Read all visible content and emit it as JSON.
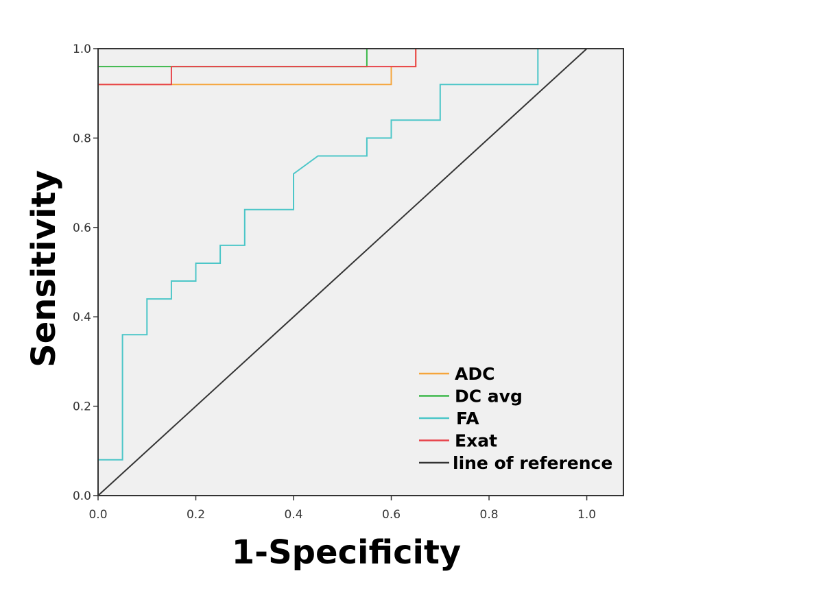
{
  "chart_data": {
    "type": "line",
    "title": "",
    "xlabel": "1-Specificity",
    "ylabel": "Sensitivity",
    "xlim": [
      0,
      1.075
    ],
    "ylim": [
      0,
      1.0
    ],
    "xticks": [
      "0.0",
      "0.2",
      "0.4",
      "0.6",
      "0.8",
      "1.0"
    ],
    "yticks": [
      "0.0",
      "0.2",
      "0.4",
      "0.6",
      "0.8",
      "1.0"
    ],
    "grid": false,
    "legend_position": "bottom-right",
    "series": [
      {
        "name": "ADC",
        "color": "#f5a53c",
        "points": [
          [
            0,
            0
          ],
          [
            0,
            0.92
          ],
          [
            0.15,
            0.92
          ],
          [
            0.6,
            0.92
          ],
          [
            0.6,
            0.96
          ],
          [
            0.65,
            0.96
          ],
          [
            0.65,
            1.0
          ],
          [
            1.0,
            1.0
          ]
        ]
      },
      {
        "name": "DC avg",
        "color": "#3cb84a",
        "points": [
          [
            0,
            0
          ],
          [
            0,
            0.96
          ],
          [
            0.55,
            0.96
          ],
          [
            0.55,
            1.0
          ],
          [
            1.0,
            1.0
          ]
        ]
      },
      {
        "name": "FA",
        "color": "#4cc6c8",
        "points": [
          [
            0,
            0
          ],
          [
            0,
            0.08
          ],
          [
            0.05,
            0.08
          ],
          [
            0.05,
            0.36
          ],
          [
            0.1,
            0.36
          ],
          [
            0.1,
            0.44
          ],
          [
            0.15,
            0.44
          ],
          [
            0.15,
            0.48
          ],
          [
            0.2,
            0.48
          ],
          [
            0.2,
            0.52
          ],
          [
            0.25,
            0.52
          ],
          [
            0.25,
            0.56
          ],
          [
            0.3,
            0.56
          ],
          [
            0.3,
            0.64
          ],
          [
            0.4,
            0.64
          ],
          [
            0.4,
            0.72
          ],
          [
            0.45,
            0.76
          ],
          [
            0.55,
            0.76
          ],
          [
            0.55,
            0.8
          ],
          [
            0.6,
            0.8
          ],
          [
            0.6,
            0.84
          ],
          [
            0.7,
            0.84
          ],
          [
            0.7,
            0.92
          ],
          [
            0.9,
            0.92
          ],
          [
            0.9,
            1.0
          ],
          [
            1.0,
            1.0
          ]
        ]
      },
      {
        "name": "Exat",
        "color": "#e8434a",
        "points": [
          [
            0,
            0
          ],
          [
            0,
            0.92
          ],
          [
            0.15,
            0.92
          ],
          [
            0.15,
            0.96
          ],
          [
            0.65,
            0.96
          ],
          [
            0.65,
            1.0
          ],
          [
            1.0,
            1.0
          ]
        ]
      },
      {
        "name": "line of reference",
        "color": "#333333",
        "points": [
          [
            0,
            0
          ],
          [
            1,
            1
          ]
        ]
      }
    ]
  }
}
